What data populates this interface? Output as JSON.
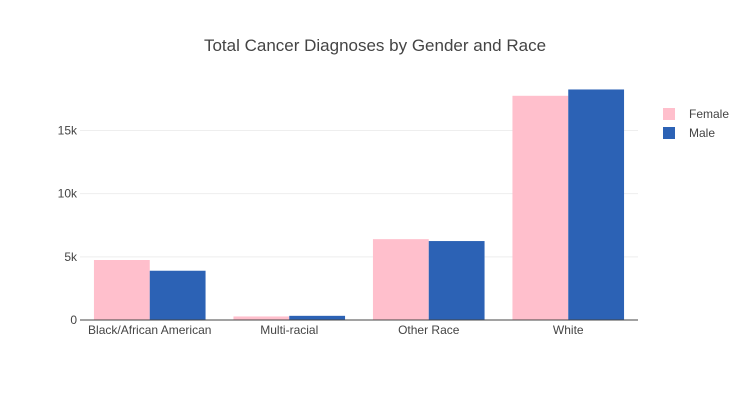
{
  "chart_data": {
    "type": "bar",
    "title": "Total Cancer Diagnoses by Gender and Race",
    "xlabel": "",
    "ylabel": "",
    "categories": [
      "Black/African American",
      "Multi-racial",
      "Other Race",
      "White"
    ],
    "series": [
      {
        "name": "Female",
        "color": "#FFBFCC",
        "values": [
          4750,
          280,
          6400,
          17750
        ]
      },
      {
        "name": "Male",
        "color": "#2C62B5",
        "values": [
          3900,
          330,
          6250,
          18250
        ]
      }
    ],
    "ylim": [
      0,
      19000
    ],
    "yticks": [
      0,
      5000,
      10000,
      15000
    ],
    "ytick_labels": [
      "0",
      "5k",
      "10k",
      "15k"
    ],
    "grid": true,
    "legend_position": "top-right"
  }
}
